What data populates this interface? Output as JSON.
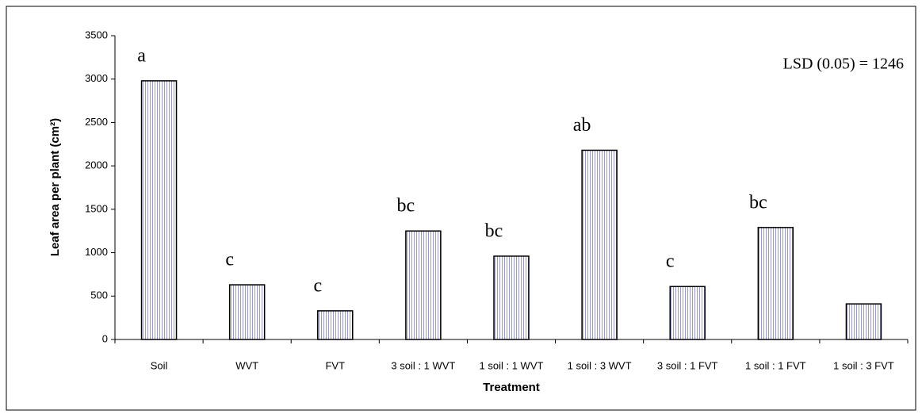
{
  "chart_data": {
    "type": "bar",
    "y_label": "Leaf area per plant (cm²)",
    "x_label": "Treatment",
    "annotation": "LSD (0.05) = 1246",
    "categories": [
      "Soil",
      "WVT",
      "FVT",
      "3 soil : 1 WVT",
      "1 soil : 1 WVT",
      "1 soil : 3 WVT",
      "3 soil : 1 FVT",
      "1 soil : 1 FVT",
      "1 soil : 3 FVT"
    ],
    "values": [
      2980,
      630,
      330,
      1250,
      960,
      2180,
      610,
      1290,
      410
    ],
    "letters": [
      "a",
      "c",
      "c",
      "bc",
      "bc",
      "ab",
      "c",
      "bc",
      null
    ],
    "color": "#9999cc",
    "ylim": [
      0,
      3500
    ],
    "yticks": [
      0,
      500,
      1000,
      1500,
      2000,
      2500,
      3000,
      3500
    ],
    "grid": false
  }
}
